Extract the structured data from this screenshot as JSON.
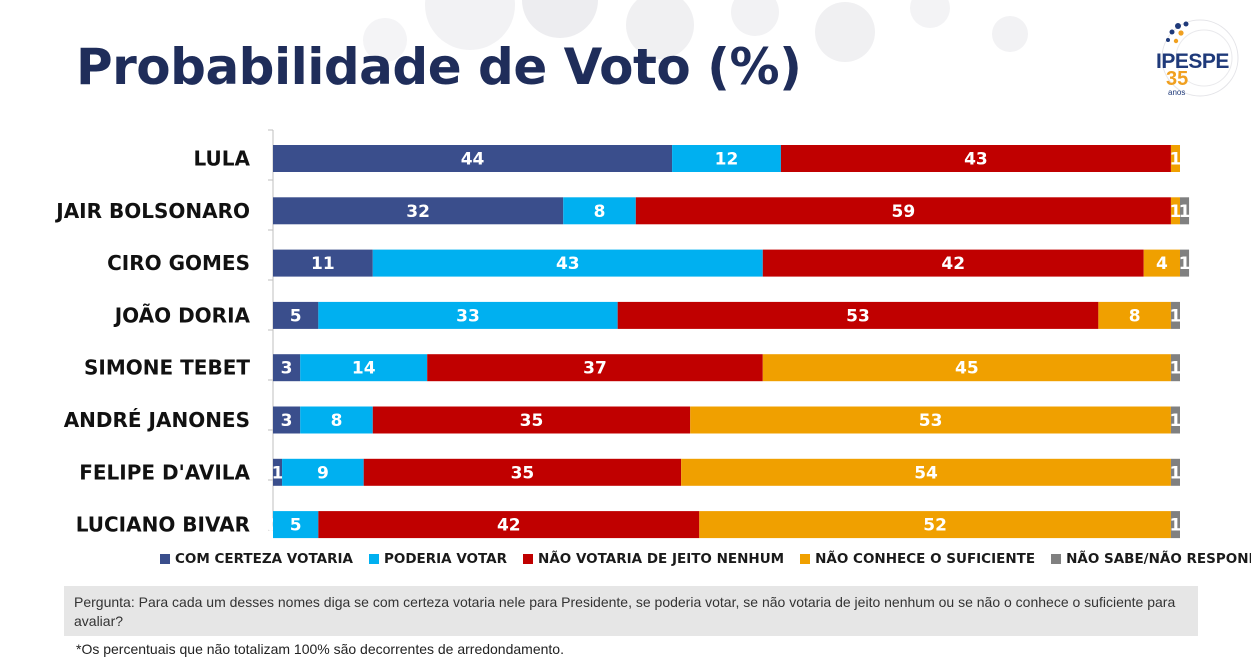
{
  "title": "Probabilidade de Voto (%)",
  "logo": {
    "name": "IPESPE",
    "years": "35",
    "suffix": "anos"
  },
  "colors": {
    "com_certeza": "#3a4e8c",
    "poderia": "#00b0f0",
    "nao_votaria": "#c00000",
    "nao_conhece": "#f0a000",
    "nao_sabe": "#808080",
    "title": "#1f2d5a"
  },
  "chart_data": {
    "type": "bar",
    "orientation": "horizontal",
    "stacked": true,
    "title": "Probabilidade de Voto (%)",
    "categories": [
      "LULA",
      "JAIR BOLSONARO",
      "CIRO GOMES",
      "JOÃO DORIA",
      "SIMONE  TEBET",
      "ANDRÉ JANONES",
      "FELIPE D'AVILA",
      "LUCIANO BIVAR"
    ],
    "series": [
      {
        "name": "COM CERTEZA VOTARIA",
        "color": "#3a4e8c",
        "values": [
          44,
          32,
          11,
          5,
          3,
          3,
          1,
          0
        ]
      },
      {
        "name": "PODERIA VOTAR",
        "color": "#00b0f0",
        "values": [
          12,
          8,
          43,
          33,
          14,
          8,
          9,
          5
        ]
      },
      {
        "name": "NÃO VOTARIA DE JEITO NENHUM",
        "color": "#c00000",
        "values": [
          43,
          59,
          42,
          53,
          37,
          35,
          35,
          42
        ]
      },
      {
        "name": "NÃO CONHECE O SUFICIENTE",
        "color": "#f0a000",
        "values": [
          1,
          1,
          4,
          8,
          45,
          53,
          54,
          52
        ]
      },
      {
        "name": "NÃO SABE/NÃO RESPONDEU",
        "color": "#808080",
        "values": [
          0,
          1,
          1,
          1,
          1,
          1,
          1,
          1
        ]
      }
    ],
    "xlim": [
      0,
      100
    ],
    "legend": "bottom",
    "grid": false
  },
  "question": "Pergunta:  Para cada um desses nomes diga se com certeza votaria nele para Presidente, se poderia votar, se não votaria de jeito nenhum ou se não o conhece o suficiente para avaliar?",
  "footnote": "*Os percentuais que não totalizam 100% são decorrentes de arredondamento."
}
